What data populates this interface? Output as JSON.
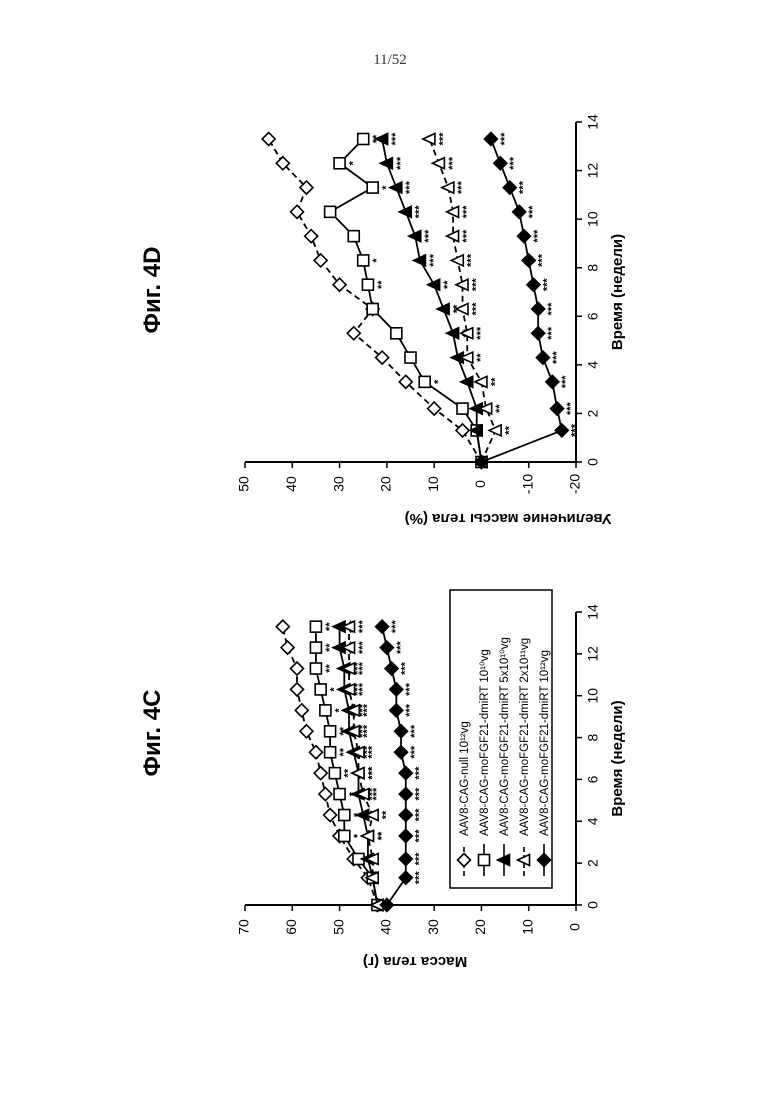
{
  "page_number": "11/52",
  "chart_data": [
    {
      "type": "line",
      "title": "Фиг. 4C",
      "xlabel": "Время (недели)",
      "ylabel": "Масса тела (г)",
      "xlim": [
        0,
        14
      ],
      "ylim": [
        0,
        70
      ],
      "xticks": [
        0,
        2,
        4,
        6,
        8,
        10,
        12,
        14
      ],
      "yticks": [
        0,
        10,
        20,
        30,
        40,
        50,
        60,
        70
      ],
      "grid": false,
      "legend_position": "bottom-right",
      "x": [
        0,
        1.3,
        2.2,
        3.3,
        4.3,
        5.3,
        6.3,
        7.3,
        8.3,
        9.3,
        10.3,
        11.3,
        12.3,
        13.3
      ],
      "series": [
        {
          "name": "AAV8-CAG-null 10¹²vg",
          "marker": "diamond-open",
          "line": "dashed",
          "values": [
            42,
            44,
            47,
            50,
            52,
            53,
            54,
            55,
            57,
            58,
            59,
            59,
            61,
            62
          ],
          "stars": []
        },
        {
          "name": "AAV8-CAG-moFGF21-dmiRT 10¹⁰vg",
          "marker": "square-open",
          "line": "solid",
          "values": [
            42,
            43,
            46,
            49,
            49,
            50,
            51,
            52,
            52,
            53,
            54,
            55,
            55,
            55
          ],
          "stars": [
            "",
            "",
            "*",
            "*",
            "*",
            "*",
            "**",
            "**",
            "**",
            "*",
            "*",
            "**",
            "**",
            "**"
          ]
        },
        {
          "name": "AAV8-CAG-moFGF21-dmiRT 5x10¹⁰vg",
          "marker": "triangle-filled",
          "line": "solid",
          "values": [
            42,
            43,
            44,
            44,
            45,
            46,
            46,
            47,
            48,
            48,
            49,
            49,
            50,
            50
          ],
          "stars": [
            "",
            "",
            "",
            "**",
            "**",
            "***",
            "***",
            "***",
            "***",
            "***",
            "***",
            "***",
            "***",
            "***"
          ]
        },
        {
          "name": "AAV8-CAG-moFGF21-dmiRT 2x10¹¹vg",
          "marker": "triangle-open",
          "line": "dashed",
          "values": [
            42,
            43,
            43,
            44,
            43,
            45,
            46,
            46,
            47,
            47,
            48,
            48,
            48,
            48
          ],
          "stars": [
            "",
            "",
            "",
            "**",
            "**",
            "***",
            "***",
            "***",
            "***",
            "***",
            "***",
            "***",
            "***",
            "***"
          ]
        },
        {
          "name": "AAV8-CAG-moFGF21-dmiRT 10¹²vg",
          "marker": "diamond-filled",
          "line": "solid",
          "values": [
            40,
            36,
            36,
            36,
            36,
            36,
            36,
            37,
            37,
            38,
            38,
            39,
            40,
            41
          ],
          "stars": [
            "",
            "***",
            "***",
            "***",
            "***",
            "***",
            "***",
            "***",
            "***",
            "***",
            "***",
            "***",
            "***",
            "***"
          ]
        }
      ]
    },
    {
      "type": "line",
      "title": "Фиг. 4D",
      "xlabel": "Время (недели)",
      "ylabel": "Увеличение массы тела (%)",
      "xlim": [
        0,
        14
      ],
      "ylim": [
        -20,
        50
      ],
      "xticks": [
        0,
        2,
        4,
        6,
        8,
        10,
        12,
        14
      ],
      "yticks": [
        -20,
        -10,
        0,
        10,
        20,
        30,
        40,
        50
      ],
      "grid": false,
      "x": [
        0,
        1.3,
        2.2,
        3.3,
        4.3,
        5.3,
        6.3,
        7.3,
        8.3,
        9.3,
        10.3,
        11.3,
        12.3,
        13.3
      ],
      "series": [
        {
          "name": "AAV8-CAG-null 10¹²vg",
          "marker": "diamond-open",
          "line": "dashed",
          "values": [
            0,
            4,
            10,
            16,
            21,
            27,
            23,
            30,
            34,
            36,
            39,
            37,
            42,
            45
          ],
          "stars": []
        },
        {
          "name": "AAV8-CAG-moFGF21-dmiRT 10¹⁰vg",
          "marker": "square-open",
          "line": "solid",
          "values": [
            0,
            1,
            4,
            12,
            15,
            18,
            23,
            24,
            25,
            27,
            32,
            23,
            30,
            25
          ],
          "stars": [
            "",
            "",
            "",
            "*",
            "",
            "",
            "",
            "**",
            "*",
            "",
            "",
            "*",
            "*",
            "**"
          ]
        },
        {
          "name": "AAV8-CAG-moFGF21-dmiRT 5x10¹⁰vg",
          "marker": "triangle-filled",
          "line": "solid",
          "values": [
            0,
            1,
            1,
            3,
            5,
            6,
            8,
            10,
            13,
            14,
            16,
            18,
            20,
            21
          ],
          "stars": [
            "",
            "",
            "",
            "",
            "",
            "**",
            "**",
            "**",
            "***",
            "***",
            "***",
            "***",
            "***",
            "***"
          ]
        },
        {
          "name": "AAV8-CAG-moFGF21-dmiRT 2x10¹¹vg",
          "marker": "triangle-open",
          "line": "dashed",
          "values": [
            0,
            -3,
            -1,
            0,
            3,
            3,
            4,
            4,
            5,
            6,
            6,
            7,
            9,
            11
          ],
          "stars": [
            "",
            "**",
            "**",
            "**",
            "**",
            "***",
            "***",
            "***",
            "***",
            "***",
            "***",
            "***",
            "***",
            "***"
          ]
        },
        {
          "name": "AAV8-CAG-moFGF21-dmiRT 10¹²vg",
          "marker": "diamond-filled",
          "line": "solid",
          "values": [
            0,
            -17,
            -16,
            -15,
            -13,
            -12,
            -12,
            -11,
            -10,
            -9,
            -8,
            -6,
            -4,
            -2
          ],
          "stars": [
            "",
            "***",
            "***",
            "***",
            "***",
            "***",
            "***",
            "***",
            "***",
            "***",
            "***",
            "***",
            "***",
            "***"
          ]
        }
      ]
    }
  ]
}
